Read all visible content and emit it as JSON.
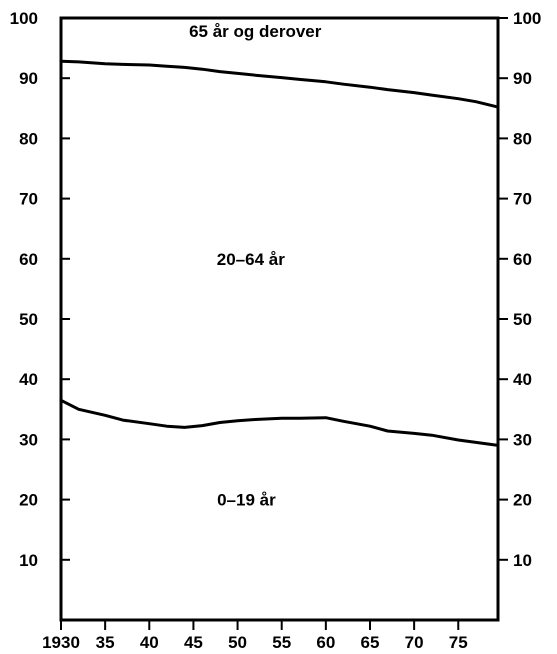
{
  "chart_data": {
    "type": "area",
    "title": "",
    "xlabel": "",
    "ylabel": "",
    "x": [
      1930,
      1932,
      1935,
      1937,
      1940,
      1942,
      1944,
      1946,
      1948,
      1950,
      1952,
      1955,
      1957,
      1960,
      1962,
      1965,
      1967,
      1970,
      1972,
      1975,
      1977,
      1979.5
    ],
    "series": [
      {
        "name": "0–19 år",
        "cumulative_upper": [
          36.5,
          35.0,
          34.0,
          33.2,
          32.6,
          32.2,
          32.0,
          32.3,
          32.8,
          33.1,
          33.3,
          33.5,
          33.5,
          33.6,
          33.0,
          32.2,
          31.4,
          31.0,
          30.7,
          29.9,
          29.5,
          29.0
        ]
      },
      {
        "name": "20–64 år",
        "cumulative_upper": [
          92.8,
          92.7,
          92.4,
          92.3,
          92.2,
          92.0,
          91.8,
          91.5,
          91.1,
          90.8,
          90.5,
          90.1,
          89.8,
          89.4,
          89.0,
          88.5,
          88.1,
          87.6,
          87.2,
          86.6,
          86.1,
          85.2
        ]
      },
      {
        "name": "65 år og derover",
        "cumulative_upper": [
          100,
          100,
          100,
          100,
          100,
          100,
          100,
          100,
          100,
          100,
          100,
          100,
          100,
          100,
          100,
          100,
          100,
          100,
          100,
          100,
          100,
          100
        ]
      }
    ],
    "xlim": [
      1930,
      1979.5
    ],
    "ylim": [
      0,
      100
    ],
    "x_tick_labels": [
      "1930",
      "35",
      "40",
      "45",
      "50",
      "55",
      "60",
      "65",
      "70",
      "75"
    ],
    "x_tick_values": [
      1930,
      1935,
      1940,
      1945,
      1950,
      1955,
      1960,
      1965,
      1970,
      1975
    ],
    "y_tick_labels_left": [
      "10",
      "20",
      "30",
      "40",
      "50",
      "60",
      "70",
      "80",
      "90",
      "100"
    ],
    "y_tick_labels_right": [
      "10",
      "20",
      "30",
      "40",
      "50",
      "60",
      "70",
      "80",
      "90",
      "100"
    ],
    "y_tick_values": [
      10,
      20,
      30,
      40,
      50,
      60,
      70,
      80,
      90,
      100
    ],
    "region_labels": [
      {
        "text": "65 år og derover",
        "x": 1952,
        "y": 97.8
      },
      {
        "text": "20–64 år",
        "x": 1951.5,
        "y": 60
      },
      {
        "text": "0–19 år",
        "x": 1951,
        "y": 20
      }
    ],
    "grid": false,
    "legend": "none"
  }
}
